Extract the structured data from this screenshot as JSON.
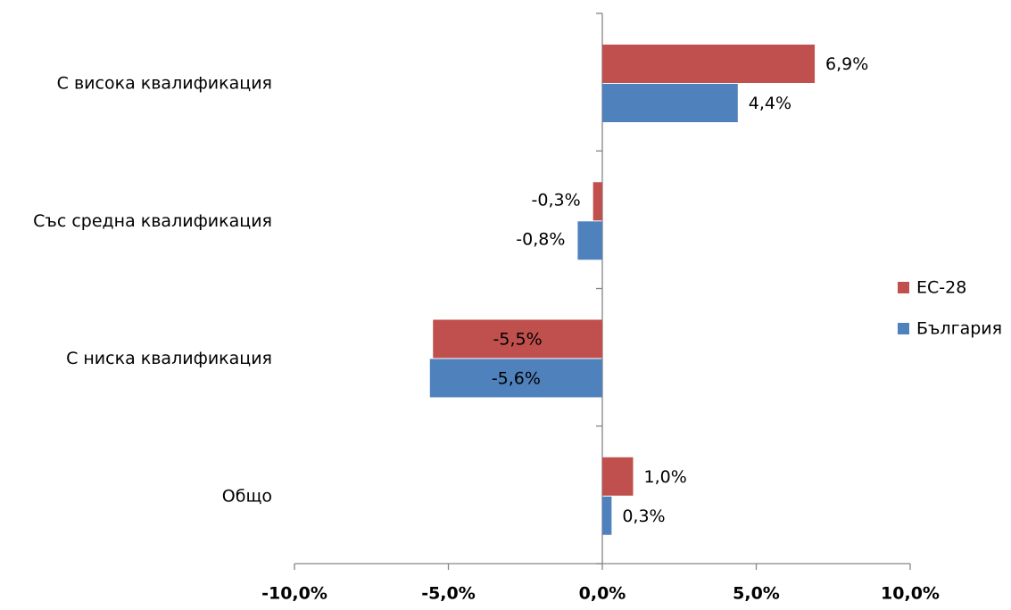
{
  "chart_data": {
    "type": "bar",
    "orientation": "horizontal",
    "categories": [
      "С висока квалификация",
      "Със средна квалификация",
      "С ниска квалификация",
      "Общо"
    ],
    "series": [
      {
        "name": "ЕС-28",
        "color": "#c0504d",
        "values": [
          6.9,
          -0.3,
          -5.5,
          1.0
        ],
        "value_labels": [
          "6,9%",
          "-0,3%",
          "-5,5%",
          "1,0%"
        ]
      },
      {
        "name": "България",
        "color": "#4f81bd",
        "values": [
          4.4,
          -0.8,
          -5.6,
          0.3
        ],
        "value_labels": [
          "4,4%",
          "-0,8%",
          "-5,6%",
          "0,3%"
        ]
      }
    ],
    "xlim": [
      -10,
      10
    ],
    "xticks": [
      {
        "value": -10,
        "label": "-10,0%"
      },
      {
        "value": -5,
        "label": "-5,0%"
      },
      {
        "value": 0,
        "label": "0,0%"
      },
      {
        "value": 5,
        "label": "5,0%"
      },
      {
        "value": 10,
        "label": "10,0%"
      }
    ],
    "legend": "right"
  }
}
